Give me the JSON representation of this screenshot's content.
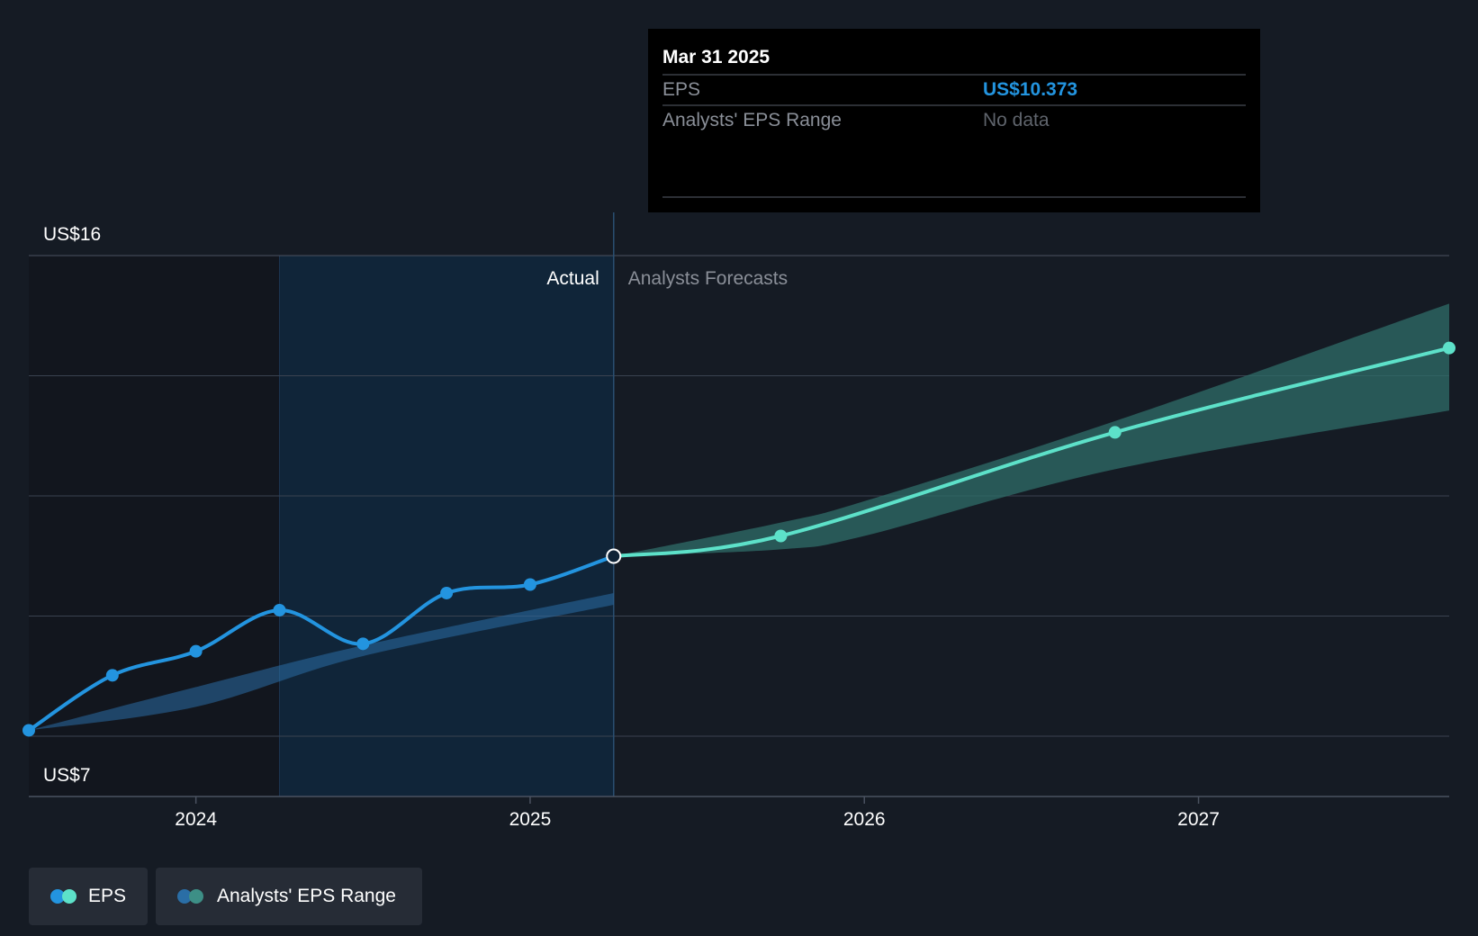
{
  "colors": {
    "background": "#151b24",
    "actual_line": "#2394df",
    "forecast_line": "#5de1c9",
    "range_band": "#2f6e68",
    "actual_band": "#2a6ea6",
    "grid": "#3a4250",
    "tooltip_bg": "#000000",
    "tooltip_value": "#2394df",
    "muted_text": "#8a8f98"
  },
  "tooltip": {
    "date": "Mar 31 2025",
    "rows": [
      {
        "label": "EPS",
        "value": "US$10.373"
      },
      {
        "label": "Analysts' EPS Range",
        "value": "No data"
      }
    ]
  },
  "region_labels": {
    "actual": "Actual",
    "forecast": "Analysts Forecasts"
  },
  "legend": [
    {
      "label": "EPS",
      "icon": "eps-legend-icon"
    },
    {
      "label": "Analysts' EPS Range",
      "icon": "range-legend-icon"
    }
  ],
  "chart_data": {
    "type": "line",
    "y_labels": [
      "US$16",
      "US$7"
    ],
    "ylim": [
      7,
      16
    ],
    "xlim": [
      2023.5,
      2027.75
    ],
    "x_ticks": [
      {
        "value": 2024,
        "label": "2024"
      },
      {
        "value": 2025,
        "label": "2025"
      },
      {
        "value": 2026,
        "label": "2026"
      },
      {
        "value": 2027,
        "label": "2027"
      }
    ],
    "grid": true,
    "highlight_period": [
      2024.25,
      2025.25
    ],
    "series": [
      {
        "name": "EPS",
        "kind": "actual",
        "points": [
          {
            "x": 2023.5,
            "y": 7.11
          },
          {
            "x": 2023.75,
            "y": 8.14
          },
          {
            "x": 2024.0,
            "y": 8.59
          },
          {
            "x": 2024.25,
            "y": 9.36
          },
          {
            "x": 2024.5,
            "y": 8.73
          },
          {
            "x": 2024.75,
            "y": 9.68
          },
          {
            "x": 2025.0,
            "y": 9.84
          },
          {
            "x": 2025.25,
            "y": 10.37
          }
        ]
      },
      {
        "name": "EPS",
        "kind": "forecast",
        "points": [
          {
            "x": 2025.25,
            "y": 10.37
          },
          {
            "x": 2025.75,
            "y": 10.75
          },
          {
            "x": 2026.75,
            "y": 12.69
          },
          {
            "x": 2027.75,
            "y": 14.27
          }
        ]
      }
    ],
    "range_band": {
      "name": "Analysts' EPS Range",
      "actual": [
        {
          "x": 2023.5,
          "low": 7.11,
          "high": 7.11
        },
        {
          "x": 2024.0,
          "low": 7.55,
          "high": 7.92
        },
        {
          "x": 2024.5,
          "low": 8.5,
          "high": 8.7
        },
        {
          "x": 2025.25,
          "low": 9.46,
          "high": 9.68
        }
      ],
      "forecast": [
        {
          "x": 2025.25,
          "low": 10.37,
          "high": 10.37
        },
        {
          "x": 2025.75,
          "low": 10.5,
          "high": 11.0
        },
        {
          "x": 2026.0,
          "low": 10.75,
          "high": 11.4
        },
        {
          "x": 2026.75,
          "low": 12.0,
          "high": 12.9
        },
        {
          "x": 2027.75,
          "low": 13.1,
          "high": 15.1
        }
      ]
    },
    "selected": {
      "x": 2025.25,
      "y": 10.37
    }
  }
}
